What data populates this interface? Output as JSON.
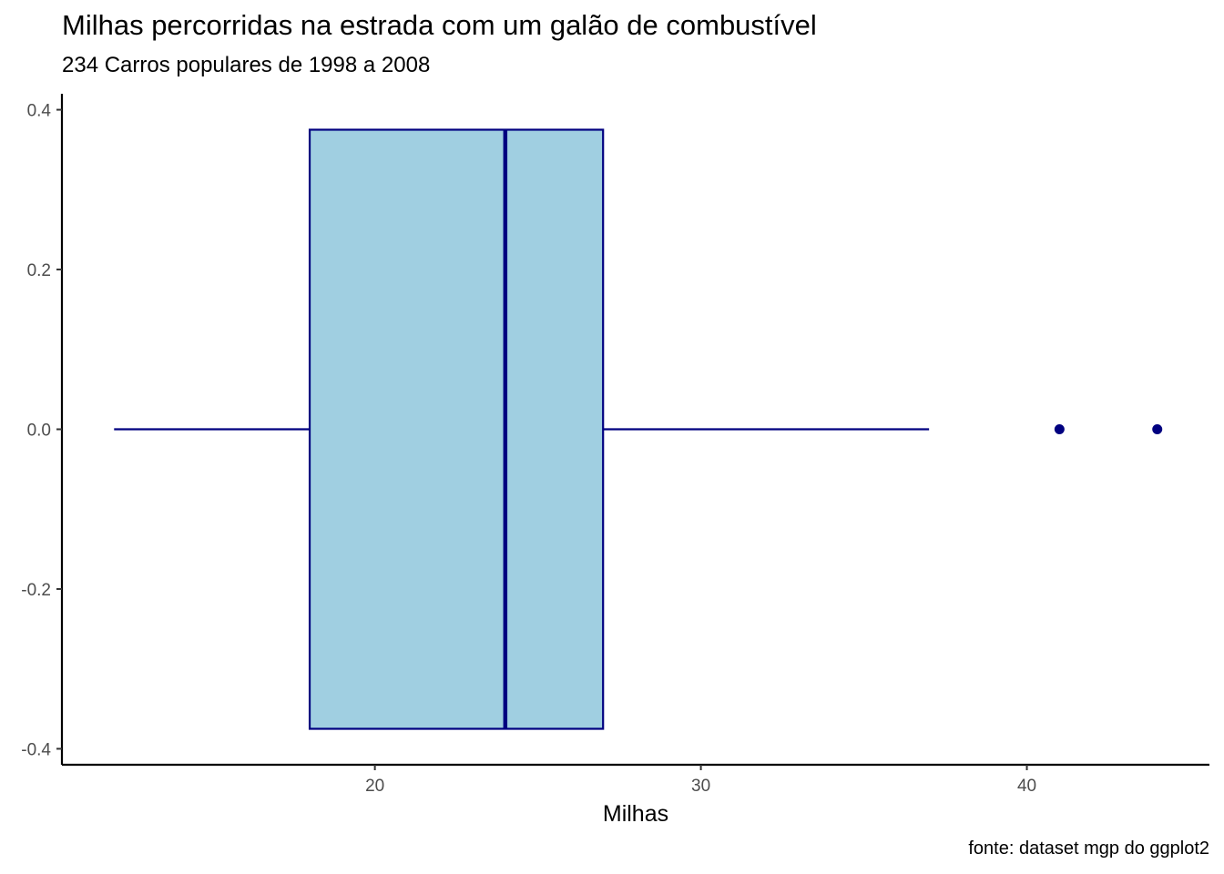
{
  "chart_data": {
    "type": "boxplot",
    "orientation": "horizontal",
    "title": "Milhas percorridas na estrada com um galão de combustível",
    "subtitle": "234 Carros populares de 1998 a 2008",
    "caption": "fonte: dataset mgp do ggplot2",
    "xlabel": "Milhas",
    "ylabel": "",
    "xlim": [
      10.4,
      45.6
    ],
    "ylim": [
      -0.42,
      0.42
    ],
    "x_ticks": [
      20,
      30,
      40
    ],
    "y_ticks": [
      -0.4,
      -0.2,
      0.0,
      0.2,
      0.4
    ],
    "y_tick_labels": [
      "-0.4",
      "-0.2",
      "0.0",
      "0.2",
      "0.4"
    ],
    "box": {
      "whisker_low": 12,
      "q1": 18,
      "median": 24,
      "q3": 27,
      "whisker_high": 37,
      "y_center": 0.0,
      "y_lower": -0.375,
      "y_upper": 0.375
    },
    "outliers": [
      41,
      44
    ],
    "grid": false,
    "legend": "none",
    "colors": {
      "box_fill": "#a0cfe1",
      "outline": "#000080",
      "axis": "#000000",
      "tick_text": "#4d4d4d"
    }
  }
}
